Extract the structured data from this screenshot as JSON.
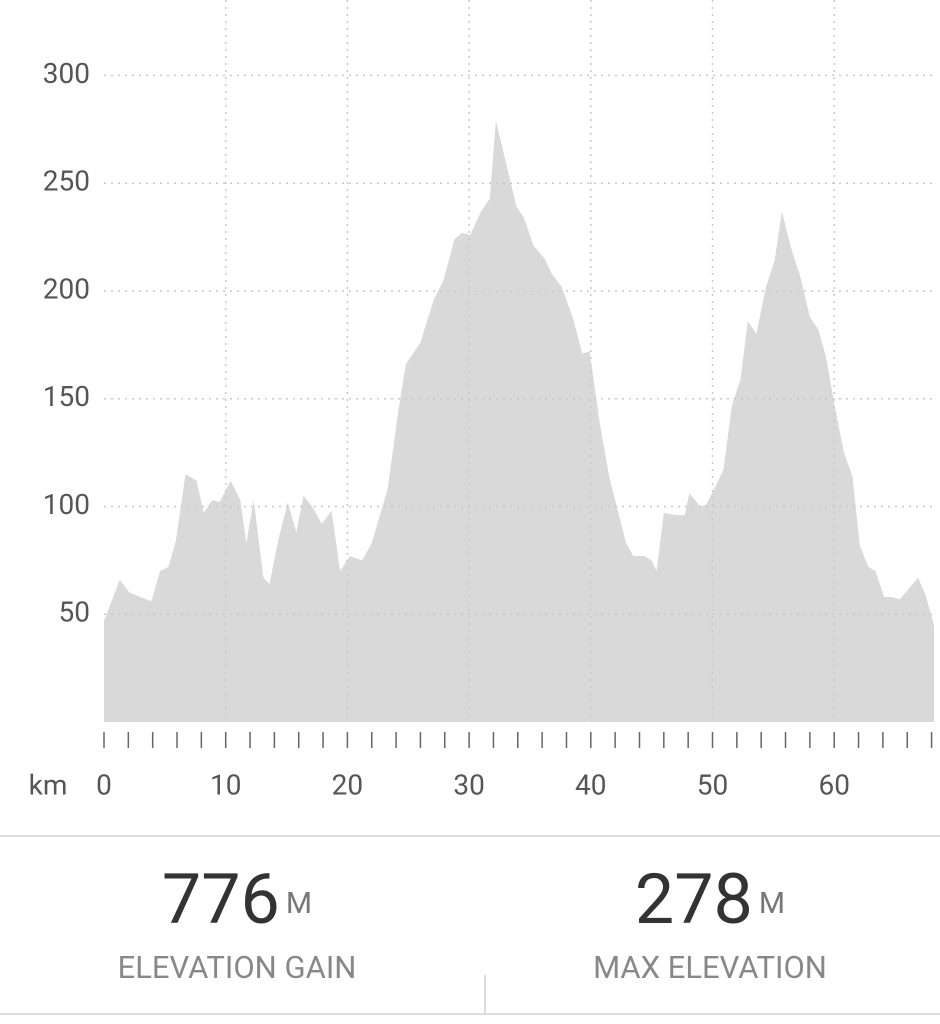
{
  "chart_data": {
    "type": "area",
    "x_label": "km",
    "x": [
      0,
      1.3,
      2.1,
      3.9,
      4.6,
      5.3,
      5.9,
      6.7,
      7.6,
      8.2,
      8.9,
      9.5,
      10.4,
      11.2,
      11.7,
      12.3,
      13.1,
      13.6,
      14.3,
      15.1,
      15.8,
      16.4,
      17.1,
      17.9,
      18.7,
      19.4,
      20.2,
      21.2,
      22.0,
      23.3,
      24.2,
      24.8,
      26.0,
      27.1,
      27.9,
      28.8,
      29.4,
      30.1,
      30.9,
      31.7,
      32.2,
      33.9,
      34.5,
      35.3,
      36.2,
      36.8,
      37.6,
      38.5,
      39.3,
      39.9,
      40.7,
      41.5,
      42.9,
      43.5,
      44.4,
      45.0,
      45.4,
      46.0,
      47.0,
      47.7,
      48.1,
      49.0,
      49.5,
      50.3,
      50.9,
      51.6,
      52.3,
      52.9,
      53.6,
      54.4,
      55.1,
      55.7,
      56.5,
      57.2,
      58.0,
      58.7,
      59.3,
      60.0,
      60.8,
      61.5,
      62.1,
      62.8,
      63.4,
      64.1,
      64.7,
      65.4,
      66.9,
      67.5,
      68.2
    ],
    "values": [
      47,
      66,
      60,
      56,
      70,
      72,
      84,
      115,
      112,
      97,
      103,
      102,
      112,
      103,
      83,
      103,
      67,
      64,
      84,
      102,
      88,
      105,
      100,
      92,
      98,
      70,
      77,
      75,
      83,
      108,
      145,
      166,
      176,
      196,
      205,
      224,
      227,
      226,
      236,
      243,
      279,
      239,
      234,
      221,
      215,
      208,
      202,
      188,
      171,
      172,
      140,
      114,
      83,
      77,
      77,
      75,
      70,
      97,
      96,
      96,
      106,
      100,
      101,
      110,
      117,
      147,
      159,
      186,
      180,
      202,
      214,
      237,
      219,
      207,
      188,
      182,
      170,
      148,
      125,
      114,
      82,
      72,
      70,
      58,
      58,
      57,
      67,
      59,
      45
    ],
    "color": "#d9d9d9",
    "xlim": [
      0,
      68.2
    ],
    "ylim": [
      0,
      335
    ],
    "xticks": [
      0,
      10,
      20,
      30,
      40,
      50,
      60
    ],
    "xticks_minor": [
      0,
      2,
      4,
      6,
      8,
      10,
      12,
      14,
      16,
      18,
      20,
      22,
      24,
      26,
      28,
      30,
      32,
      34,
      36,
      38,
      40,
      42,
      44,
      46,
      48,
      50,
      52,
      54,
      56,
      58,
      60,
      62,
      64,
      66,
      68
    ],
    "yticks": [
      50,
      100,
      150,
      200,
      250,
      300
    ],
    "grid": true
  },
  "stats": [
    {
      "value": 776,
      "unit": "M",
      "label": "ELEVATION GAIN"
    },
    {
      "value": 278,
      "unit": "M",
      "label": "MAX ELEVATION"
    }
  ]
}
